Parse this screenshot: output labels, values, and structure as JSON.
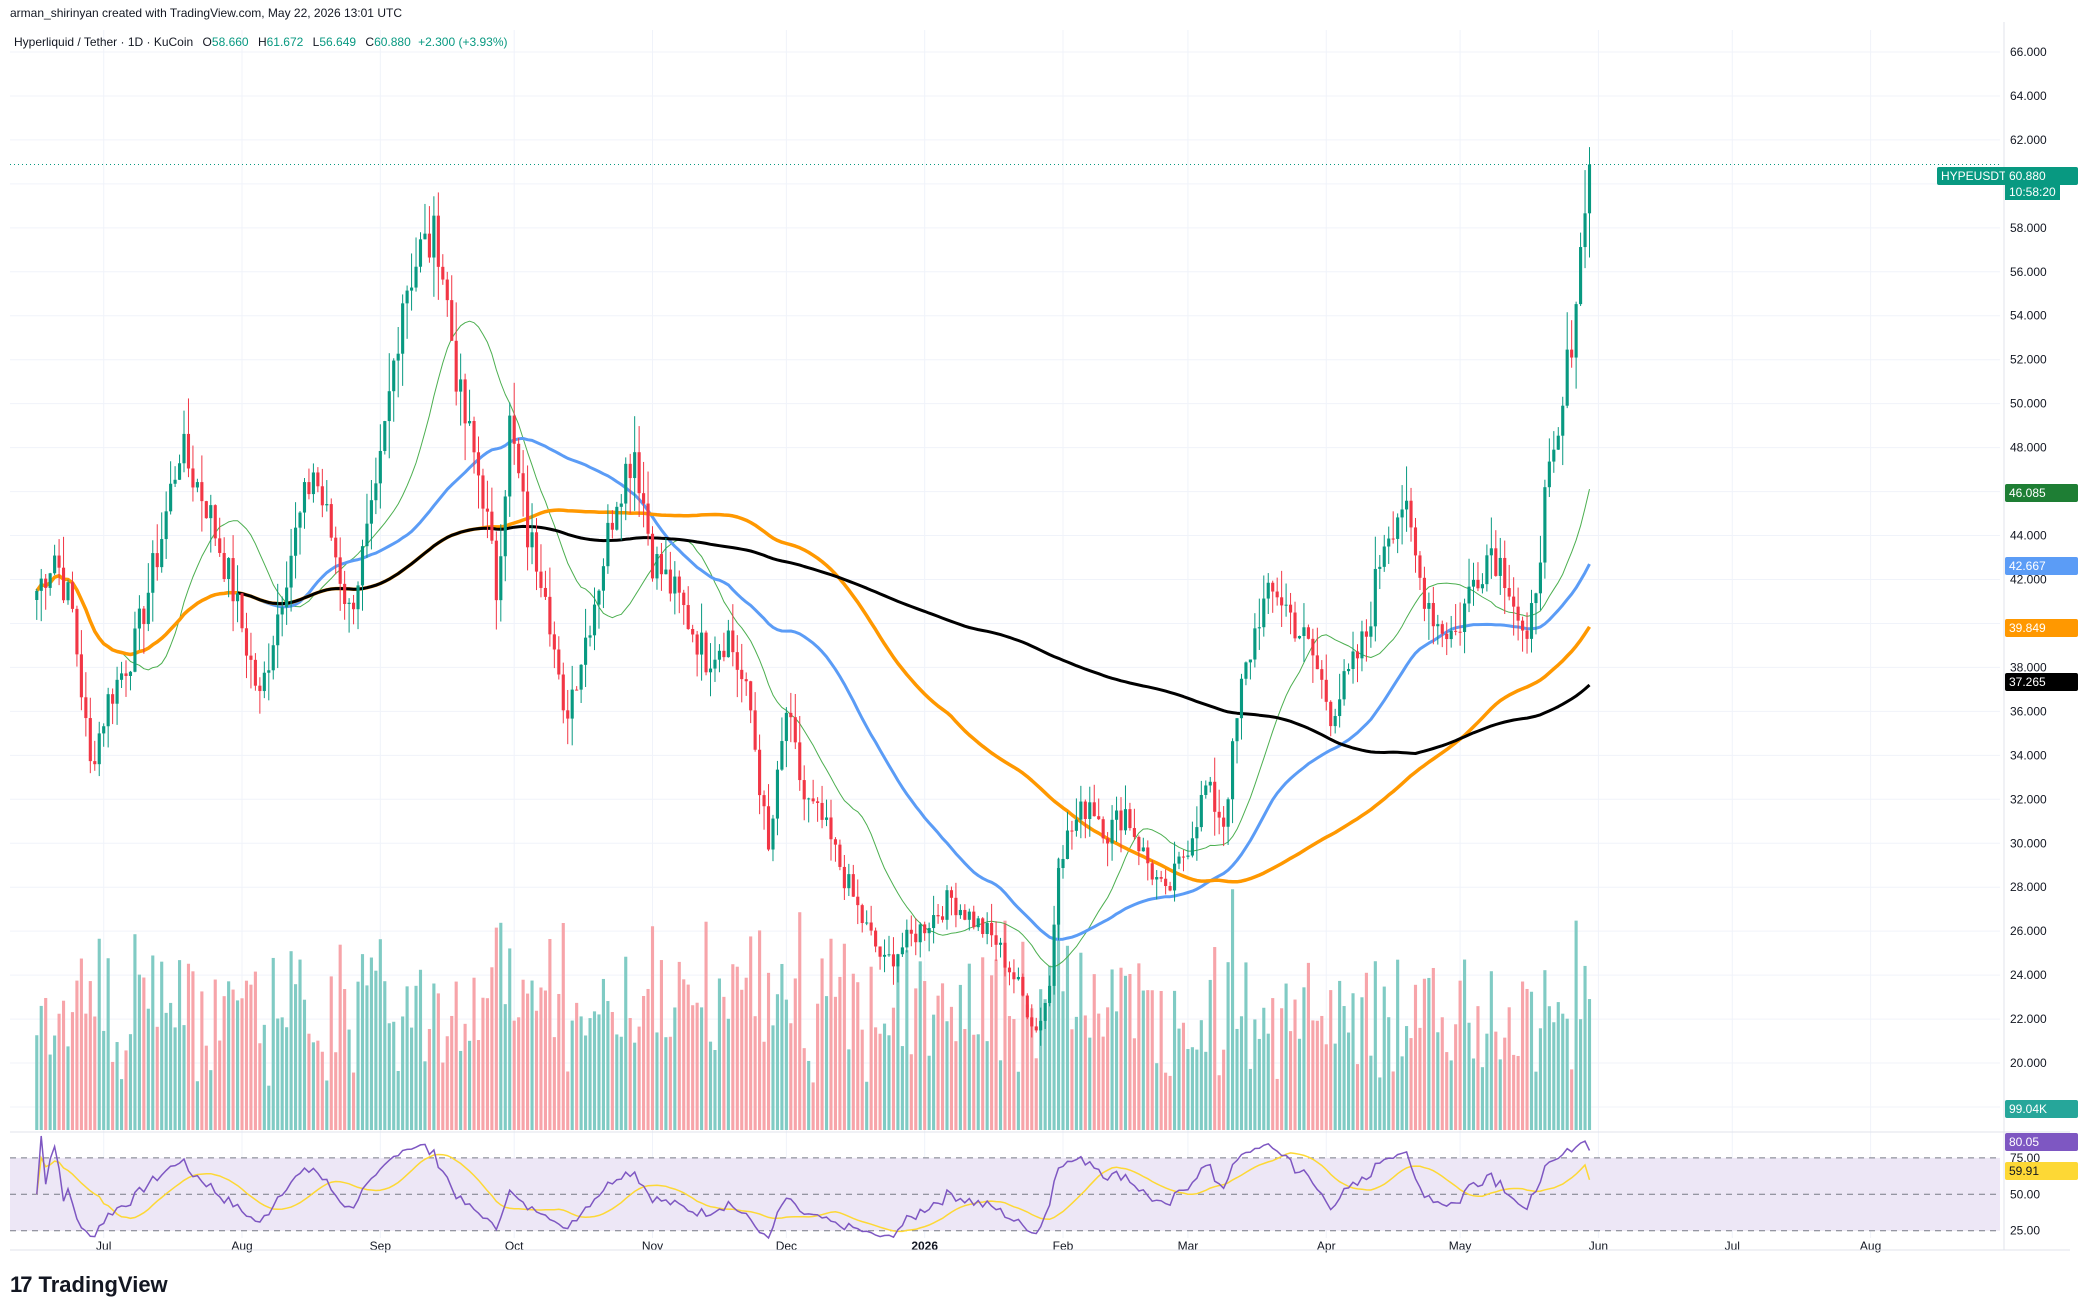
{
  "header": {
    "attribution": "arman_shirinyan created with TradingView.com, May 22, 2026 13:01 UTC",
    "symbol_title": "Hyperliquid / Tether · 1D · KuCoin",
    "ohlc": {
      "o_label": "O",
      "o": "58.660",
      "h_label": "H",
      "h": "61.672",
      "l_label": "L",
      "l": "56.649",
      "c_label": "C",
      "c": "60.880",
      "change": "+2.300 (+3.93%)"
    }
  },
  "brand": {
    "mark": "17",
    "name": "TradingView"
  },
  "colors": {
    "up": "#089981",
    "down": "#f23645",
    "vol_up": "#80cbc4",
    "vol_down": "#f7a4a9",
    "ma_green": "#4caf50",
    "ma_blue": "#5b9cf6",
    "ma_orange": "#ff9800",
    "ma_black": "#000000",
    "rsi_line": "#7e57c2",
    "rsi_ma": "#fdd835",
    "rsi_band": "#ede7f6",
    "grid": "#f0f3fa"
  },
  "badges": {
    "symbol": "HYPEUSDT",
    "last_price": "60.880",
    "countdown": "10:58:20",
    "ma_green": "46.085",
    "ma_blue": "42.667",
    "ma_orange": "39.849",
    "ma_black": "37.265",
    "volume": "99.04K",
    "rsi": "80.05",
    "rsi_ma": "59.91"
  },
  "chart_data": {
    "type": "candlestick",
    "symbol": "HYPEUSDT",
    "timeframe": "1D",
    "price_axis": {
      "ticks": [
        "66.000",
        "64.000",
        "62.000",
        "60.000",
        "58.000",
        "56.000",
        "54.000",
        "52.000",
        "50.000",
        "48.000",
        "46.000",
        "44.000",
        "42.000",
        "40.000",
        "38.000",
        "36.000",
        "34.000",
        "32.000",
        "30.000",
        "28.000",
        "26.000",
        "24.000",
        "22.000",
        "20.000",
        "18.000"
      ],
      "range": [
        17.5,
        67
      ]
    },
    "rsi_axis": {
      "ticks": [
        "75.00",
        "50.00",
        "25.00"
      ],
      "range": [
        20,
        90
      ]
    },
    "time_axis": {
      "ticks": [
        "Jul",
        "Aug",
        "Sep",
        "Oct",
        "Nov",
        "Dec",
        "2026",
        "Feb",
        "Mar",
        "Apr",
        "May",
        "Jun",
        "Jul",
        "Aug"
      ],
      "tick_day_index": [
        15,
        46,
        77,
        107,
        138,
        168,
        199,
        230,
        258,
        289,
        319,
        350,
        380,
        411
      ]
    },
    "day_range": [
      -6,
      440
    ],
    "price_anchors": [
      [
        0,
        41.5
      ],
      [
        4,
        43.2
      ],
      [
        8,
        40.5
      ],
      [
        12,
        33.5
      ],
      [
        16,
        36.5
      ],
      [
        22,
        39
      ],
      [
        28,
        44
      ],
      [
        32,
        48
      ],
      [
        38,
        45.5
      ],
      [
        44,
        41.5
      ],
      [
        50,
        36.5
      ],
      [
        56,
        42.5
      ],
      [
        62,
        47
      ],
      [
        66,
        44
      ],
      [
        70,
        40.5
      ],
      [
        76,
        45.5
      ],
      [
        82,
        55
      ],
      [
        86,
        57
      ],
      [
        90,
        57.5
      ],
      [
        95,
        50
      ],
      [
        100,
        46
      ],
      [
        103,
        41.5
      ],
      [
        106,
        49
      ],
      [
        110,
        44
      ],
      [
        114,
        42
      ],
      [
        118,
        35.5
      ],
      [
        122,
        38.5
      ],
      [
        126,
        42
      ],
      [
        130,
        46
      ],
      [
        134,
        48
      ],
      [
        138,
        43
      ],
      [
        144,
        41
      ],
      [
        150,
        38.5
      ],
      [
        155,
        39.5
      ],
      [
        160,
        36
      ],
      [
        164,
        29.5
      ],
      [
        168,
        36
      ],
      [
        172,
        32
      ],
      [
        176,
        31
      ],
      [
        180,
        29
      ],
      [
        185,
        26.5
      ],
      [
        190,
        24.5
      ],
      [
        195,
        25.5
      ],
      [
        200,
        26.5
      ],
      [
        205,
        27.5
      ],
      [
        210,
        26.5
      ],
      [
        215,
        25.5
      ],
      [
        220,
        23.5
      ],
      [
        224,
        21.5
      ],
      [
        227,
        23.5
      ],
      [
        229,
        29.5
      ],
      [
        233,
        31
      ],
      [
        236,
        32
      ],
      [
        240,
        30.5
      ],
      [
        244,
        31.5
      ],
      [
        248,
        29.5
      ],
      [
        253,
        27.5
      ],
      [
        258,
        30
      ],
      [
        262,
        32.5
      ],
      [
        266,
        31
      ],
      [
        270,
        37
      ],
      [
        274,
        40.5
      ],
      [
        278,
        41.5
      ],
      [
        282,
        40
      ],
      [
        286,
        38.5
      ],
      [
        290,
        36
      ],
      [
        294,
        37.5
      ],
      [
        298,
        39.5
      ],
      [
        302,
        44
      ],
      [
        306,
        45.5
      ],
      [
        310,
        42
      ],
      [
        314,
        40
      ],
      [
        318,
        39.5
      ],
      [
        322,
        42
      ],
      [
        326,
        43.5
      ],
      [
        330,
        42
      ],
      [
        334,
        38.5
      ],
      [
        336,
        42
      ],
      [
        338,
        45.5
      ],
      [
        341,
        48
      ],
      [
        343,
        51.5
      ],
      [
        345,
        55
      ],
      [
        347,
        58.66
      ],
      [
        348,
        60.88
      ]
    ],
    "moving_averages": [
      {
        "label": "46.085",
        "color": "green",
        "window": 20,
        "last": 46.085
      },
      {
        "label": "42.667",
        "color": "blue",
        "window": 50,
        "last": 42.667
      },
      {
        "label": "39.849",
        "color": "orange",
        "window": 100,
        "last": 39.849
      },
      {
        "label": "37.265",
        "color": "black",
        "window": 200,
        "last": 37.265
      }
    ],
    "last_candle": {
      "open": 58.66,
      "high": 61.672,
      "low": 56.649,
      "close": 60.88
    },
    "last_volume": "99.04K",
    "rsi_last": 80.05,
    "rsi_ma_last": 59.91
  }
}
